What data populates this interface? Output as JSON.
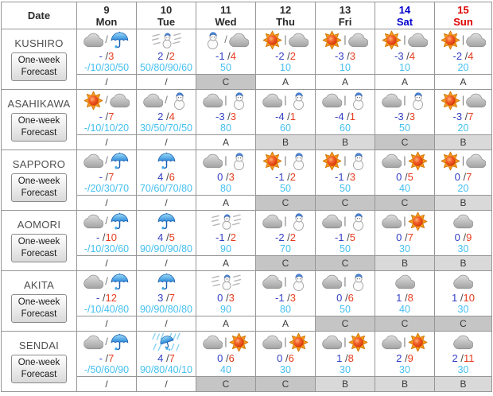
{
  "table": {
    "date_header": "Date",
    "days": [
      {
        "num": "9",
        "name": "Mon",
        "color": "#2b2b2b"
      },
      {
        "num": "10",
        "name": "Tue",
        "color": "#2b2b2b"
      },
      {
        "num": "11",
        "name": "Wed",
        "color": "#2b2b2b"
      },
      {
        "num": "12",
        "name": "Thu",
        "color": "#2b2b2b"
      },
      {
        "num": "13",
        "name": "Fri",
        "color": "#2b2b2b"
      },
      {
        "num": "14",
        "name": "Sat",
        "color": "#0000cc"
      },
      {
        "num": "15",
        "name": "Sun",
        "color": "#dd0000"
      }
    ],
    "button_label_line1": "One-week",
    "button_label_line2": "Forecast",
    "cities": [
      {
        "name": "KUSHIRO",
        "days": [
          {
            "icons": [
              "cloud",
              "umbrella"
            ],
            "sep": "/",
            "tmin": "-",
            "tmax": "3",
            "precip": "-/10/30/50",
            "rel": "/"
          },
          {
            "icons": [
              "snowstorm"
            ],
            "sep": "",
            "tmin": "2",
            "tmax": "2",
            "precip": "50/80/90/60",
            "rel": "/"
          },
          {
            "icons": [
              "snowman",
              "cloud"
            ],
            "sep": "/",
            "tmin": "-1",
            "tmax": "4",
            "precip": "50",
            "rel": "C"
          },
          {
            "icons": [
              "sun",
              "cloud"
            ],
            "sep": "|",
            "tmin": "-2",
            "tmax": "2",
            "precip": "10",
            "rel": "A"
          },
          {
            "icons": [
              "sun",
              "cloud"
            ],
            "sep": "|",
            "tmin": "-3",
            "tmax": "3",
            "precip": "10",
            "rel": "A"
          },
          {
            "icons": [
              "sun",
              "cloud"
            ],
            "sep": "|",
            "tmin": "-3",
            "tmax": "4",
            "precip": "10",
            "rel": "A"
          },
          {
            "icons": [
              "sun",
              "cloud"
            ],
            "sep": "|",
            "tmin": "-2",
            "tmax": "4",
            "precip": "20",
            "rel": "A"
          }
        ]
      },
      {
        "name": "ASAHIKAWA",
        "days": [
          {
            "icons": [
              "sun",
              "cloud"
            ],
            "sep": "/",
            "tmin": "-",
            "tmax": "7",
            "precip": "-/10/10/20",
            "rel": "/"
          },
          {
            "icons": [
              "cloud",
              "snowman"
            ],
            "sep": "/",
            "tmin": "2",
            "tmax": "4",
            "precip": "30/50/70/50",
            "rel": "/"
          },
          {
            "icons": [
              "cloud",
              "snowman"
            ],
            "sep": "|",
            "tmin": "-3",
            "tmax": "3",
            "precip": "80",
            "rel": "A"
          },
          {
            "icons": [
              "cloud",
              "snowman"
            ],
            "sep": "|",
            "tmin": "-4",
            "tmax": "1",
            "precip": "60",
            "rel": "B"
          },
          {
            "icons": [
              "cloud",
              "snowman"
            ],
            "sep": "|",
            "tmin": "-4",
            "tmax": "1",
            "precip": "60",
            "rel": "B"
          },
          {
            "icons": [
              "cloud",
              "snowman"
            ],
            "sep": "|",
            "tmin": "-3",
            "tmax": "3",
            "precip": "50",
            "rel": "C"
          },
          {
            "icons": [
              "sun",
              "cloud"
            ],
            "sep": "|",
            "tmin": "-3",
            "tmax": "7",
            "precip": "20",
            "rel": "B"
          }
        ]
      },
      {
        "name": "SAPPORO",
        "days": [
          {
            "icons": [
              "cloud",
              "umbrella"
            ],
            "sep": "/",
            "tmin": "-",
            "tmax": "7",
            "precip": "-/20/30/70",
            "rel": "/"
          },
          {
            "icons": [
              "umbrella"
            ],
            "sep": "",
            "tmin": "4",
            "tmax": "6",
            "precip": "70/60/70/80",
            "rel": "/"
          },
          {
            "icons": [
              "cloud",
              "snowman"
            ],
            "sep": "|",
            "tmin": "0",
            "tmax": "3",
            "precip": "80",
            "rel": "A"
          },
          {
            "icons": [
              "sun",
              "snowman"
            ],
            "sep": "|",
            "tmin": "-1",
            "tmax": "2",
            "precip": "50",
            "rel": "C"
          },
          {
            "icons": [
              "sun",
              "snowman"
            ],
            "sep": "|",
            "tmin": "-1",
            "tmax": "3",
            "precip": "50",
            "rel": "C"
          },
          {
            "icons": [
              "cloud",
              "sun"
            ],
            "sep": "|",
            "tmin": "0",
            "tmax": "5",
            "precip": "40",
            "rel": "C"
          },
          {
            "icons": [
              "sun",
              "cloud"
            ],
            "sep": "|",
            "tmin": "0",
            "tmax": "7",
            "precip": "20",
            "rel": "B"
          }
        ]
      },
      {
        "name": "AOMORI",
        "days": [
          {
            "icons": [
              "cloud",
              "umbrella"
            ],
            "sep": "/",
            "tmin": "-",
            "tmax": "10",
            "precip": "-/10/30/60",
            "rel": "/"
          },
          {
            "icons": [
              "umbrella"
            ],
            "sep": "",
            "tmin": "4",
            "tmax": "5",
            "precip": "90/90/90/80",
            "rel": "/"
          },
          {
            "icons": [
              "snowstorm"
            ],
            "sep": "",
            "tmin": "-1",
            "tmax": "2",
            "precip": "90",
            "rel": "A"
          },
          {
            "icons": [
              "cloud",
              "snowman"
            ],
            "sep": "|",
            "tmin": "-2",
            "tmax": "2",
            "precip": "70",
            "rel": "C"
          },
          {
            "icons": [
              "cloud",
              "snowman"
            ],
            "sep": "|",
            "tmin": "-1",
            "tmax": "5",
            "precip": "50",
            "rel": "C"
          },
          {
            "icons": [
              "cloud",
              "sun"
            ],
            "sep": "|",
            "tmin": "0",
            "tmax": "7",
            "precip": "30",
            "rel": "B"
          },
          {
            "icons": [
              "cloud"
            ],
            "sep": "",
            "tmin": "0",
            "tmax": "9",
            "precip": "30",
            "rel": "B"
          }
        ]
      },
      {
        "name": "AKITA",
        "days": [
          {
            "icons": [
              "cloud",
              "umbrella"
            ],
            "sep": "/",
            "tmin": "-",
            "tmax": "12",
            "precip": "-/10/40/80",
            "rel": "/"
          },
          {
            "icons": [
              "umbrella"
            ],
            "sep": "",
            "tmin": "3",
            "tmax": "7",
            "precip": "90/90/80/80",
            "rel": "/"
          },
          {
            "icons": [
              "snowstorm"
            ],
            "sep": "",
            "tmin": "0",
            "tmax": "3",
            "precip": "90",
            "rel": "A"
          },
          {
            "icons": [
              "cloud",
              "snowman"
            ],
            "sep": "|",
            "tmin": "-1",
            "tmax": "3",
            "precip": "80",
            "rel": "A"
          },
          {
            "icons": [
              "cloud",
              "snowman"
            ],
            "sep": "|",
            "tmin": "0",
            "tmax": "6",
            "precip": "50",
            "rel": "C"
          },
          {
            "icons": [
              "cloud"
            ],
            "sep": "",
            "tmin": "1",
            "tmax": "8",
            "precip": "40",
            "rel": "C"
          },
          {
            "icons": [
              "cloud"
            ],
            "sep": "",
            "tmin": "1",
            "tmax": "10",
            "precip": "30",
            "rel": "C"
          }
        ]
      },
      {
        "name": "SENDAI",
        "days": [
          {
            "icons": [
              "cloud",
              "umbrella"
            ],
            "sep": "/",
            "tmin": "-",
            "tmax": "7",
            "precip": "-/50/60/90",
            "rel": "/"
          },
          {
            "icons": [
              "rainstorm"
            ],
            "sep": "",
            "tmin": "4",
            "tmax": "7",
            "precip": "90/80/40/10",
            "rel": "/"
          },
          {
            "icons": [
              "cloud",
              "sun"
            ],
            "sep": "|",
            "tmin": "0",
            "tmax": "6",
            "precip": "40",
            "rel": "C"
          },
          {
            "icons": [
              "cloud",
              "sun"
            ],
            "sep": "|",
            "tmin": "0",
            "tmax": "6",
            "precip": "30",
            "rel": "C"
          },
          {
            "icons": [
              "cloud",
              "sun"
            ],
            "sep": "|",
            "tmin": "1",
            "tmax": "8",
            "precip": "30",
            "rel": "B"
          },
          {
            "icons": [
              "cloud",
              "sun"
            ],
            "sep": "|",
            "tmin": "2",
            "tmax": "9",
            "precip": "30",
            "rel": "B"
          },
          {
            "icons": [
              "cloud"
            ],
            "sep": "",
            "tmin": "2",
            "tmax": "11",
            "precip": "30",
            "rel": "B"
          }
        ]
      }
    ]
  },
  "format": {
    "temp_separator": "/"
  },
  "colors": {
    "temp_min": "#3340c4",
    "temp_max": "#e63c1e",
    "precip": "#45c0f0",
    "saturday": "#0000cc",
    "sunday": "#dd0000",
    "shade_b": "#d9d9d9",
    "shade_c": "#c5c5c5"
  }
}
